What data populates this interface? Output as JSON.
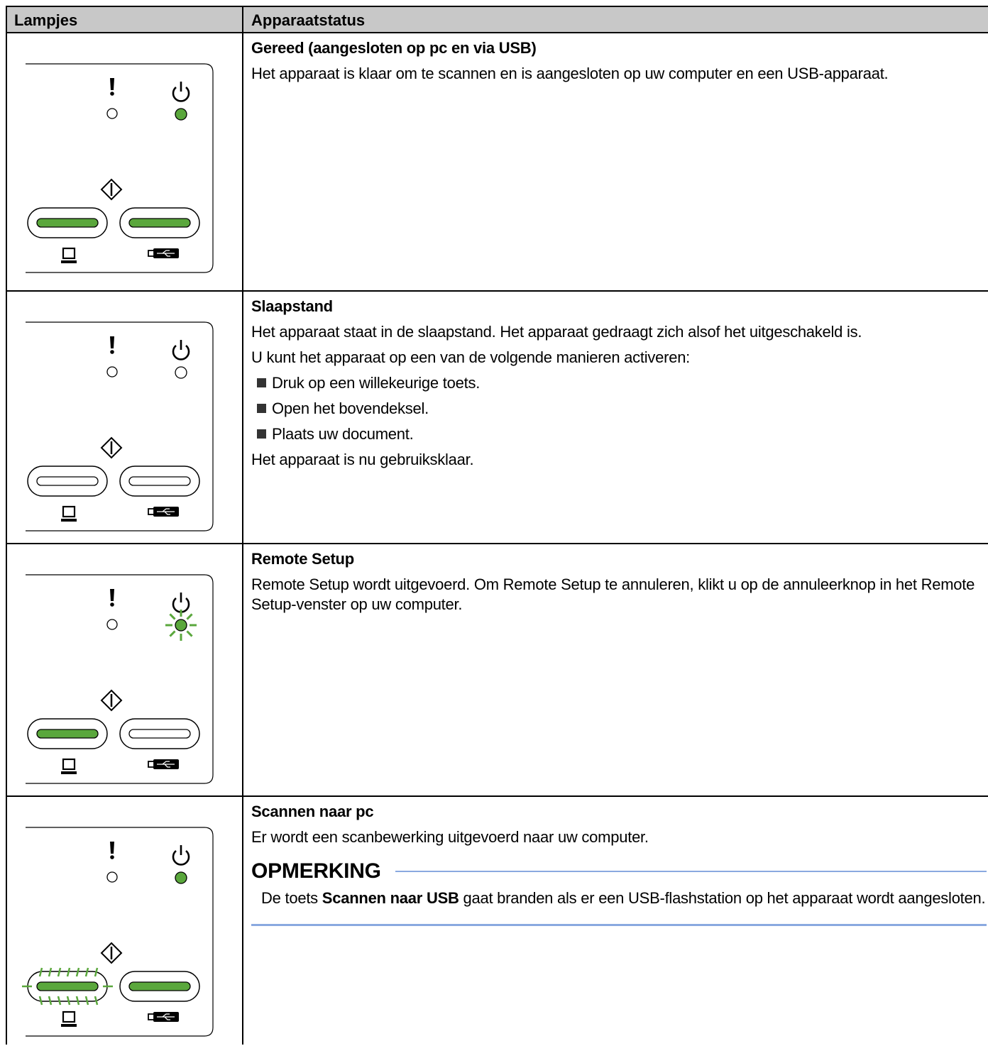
{
  "table": {
    "header": [
      "Lampjes",
      "Apparaatstatus"
    ],
    "rows": [
      {
        "title": "Gereed (aangesloten op pc en via USB)",
        "paragraphs": [
          "Het apparaat is klaar om te scannen en is aangesloten op uw computer en een USB-apparaat."
        ]
      },
      {
        "title": "Slaapstand",
        "paragraphs": [
          "Het apparaat staat in de slaapstand. Het apparaat gedraagt zich alsof het uitgeschakeld is.",
          "U kunt het apparaat op een van de volgende manieren activeren:"
        ],
        "bullets": [
          "Druk op een willekeurige toets.",
          "Open het bovendeksel.",
          "Plaats uw document."
        ],
        "closing": "Het apparaat is nu gebruiksklaar."
      },
      {
        "title": "Remote Setup",
        "paragraphs": [
          "Remote Setup wordt uitgevoerd. Om Remote Setup te annuleren, klikt u op de annuleerknop in het Remote Setup-venster op uw computer."
        ]
      },
      {
        "title": "Scannen naar pc",
        "paragraphs": [
          "Er wordt een scanbewerking uitgevoerd naar uw computer."
        ],
        "note": {
          "heading": "OPMERKING",
          "text_before": "De toets ",
          "bold": "Scannen naar USB",
          "text_after": " gaat branden als er een USB-flashstation op het apparaat wordt aangesloten."
        }
      }
    ]
  }
}
